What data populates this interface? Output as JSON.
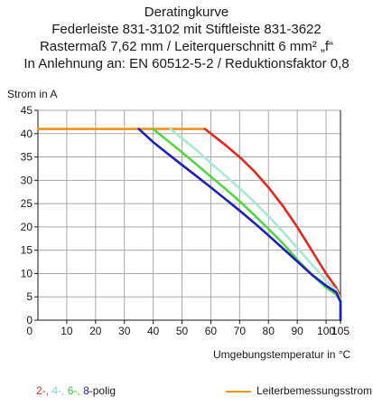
{
  "chart_data": {
    "type": "line",
    "title": "Deratingkurve",
    "subtitle_lines": [
      "Federleiste 831-3102 mit Stiftleiste 831-3622",
      "Rastermaß 7,62 mm / Leiterquerschnitt 6 mm² „f“",
      "In Anlehnung an: EN 60512-5-2 / Reduktionsfaktor 0,8"
    ],
    "ylabel": "Strom in A",
    "xlabel": "Umgebungstemperatur in °C",
    "xlim": [
      0,
      105
    ],
    "ylim": [
      0,
      45
    ],
    "x_ticks": [
      10,
      20,
      30,
      40,
      50,
      60,
      70,
      80,
      90,
      100,
      105
    ],
    "y_ticks": [
      0,
      5,
      10,
      15,
      20,
      25,
      30,
      35,
      40,
      45
    ],
    "grid": true,
    "legend_left": {
      "items": [
        {
          "label": "2-,",
          "color": "#e0281e"
        },
        {
          "label": "4-,",
          "color": "#a8e8d8"
        },
        {
          "label": "6-,",
          "color": "#52d646"
        },
        {
          "label": "8-",
          "color": "#2020b8"
        }
      ],
      "suffix": "polig"
    },
    "legend_right": {
      "label": "Leiterbemessungsstrom",
      "color": "#f0931e"
    },
    "series": [
      {
        "name": "Leiterbemessungsstrom",
        "color": "#f0931e",
        "x": [
          0,
          58
        ],
        "y": [
          41,
          41
        ]
      },
      {
        "name": "2-",
        "color": "#e0281e",
        "x": [
          58,
          65,
          70,
          75,
          80,
          85,
          90,
          95,
          100,
          103.5,
          105,
          105
        ],
        "y": [
          41,
          37.6,
          35,
          32,
          28.5,
          24.5,
          20,
          15,
          10,
          7,
          5,
          0
        ]
      },
      {
        "name": "4-",
        "color": "#a8e8d8",
        "x": [
          46,
          50,
          55,
          60,
          65,
          70,
          75,
          80,
          85,
          90,
          95,
          100,
          103.5,
          105,
          105
        ],
        "y": [
          41,
          39,
          36.5,
          33.7,
          31,
          28.3,
          25.4,
          22.3,
          19,
          15.5,
          12,
          8.5,
          6.5,
          4.5,
          0
        ]
      },
      {
        "name": "6-",
        "color": "#52d646",
        "x": [
          40,
          45,
          50,
          55,
          60,
          65,
          70,
          75,
          80,
          85,
          90,
          95,
          100,
          103.5,
          105,
          105
        ],
        "y": [
          41,
          38.5,
          36,
          33.4,
          30.8,
          28.2,
          25.5,
          22.6,
          19.6,
          16.5,
          13,
          9.8,
          7,
          5.5,
          4,
          0
        ]
      },
      {
        "name": "8-",
        "color": "#2020b8",
        "x": [
          35,
          40,
          45,
          50,
          55,
          60,
          65,
          70,
          75,
          80,
          85,
          90,
          95,
          100,
          103.5,
          105,
          105
        ],
        "y": [
          41,
          38.2,
          35.7,
          33.3,
          30.9,
          28.5,
          26,
          23.5,
          20.9,
          18.2,
          15.4,
          12.6,
          9.8,
          7.4,
          6,
          4,
          0
        ]
      }
    ]
  }
}
